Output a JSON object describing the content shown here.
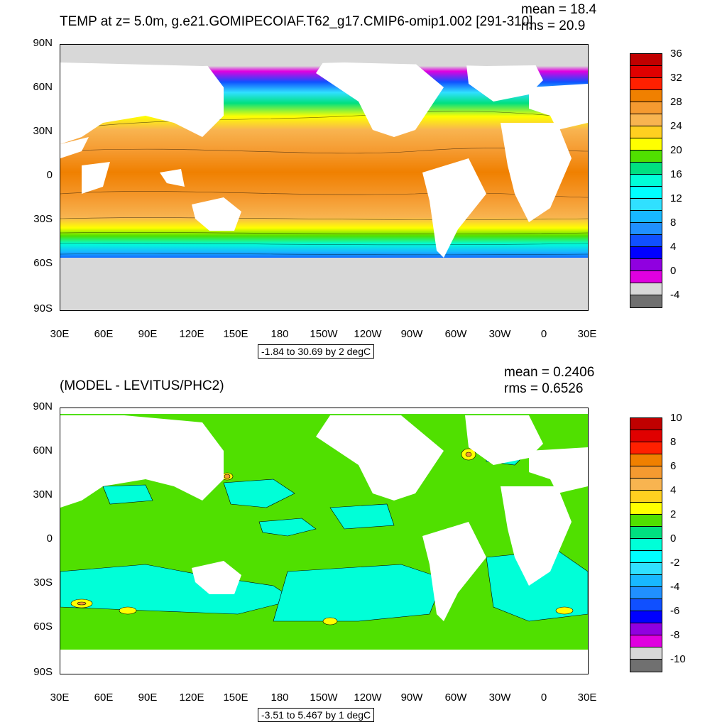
{
  "panels": [
    {
      "id": "top",
      "title": "TEMP at z=   5.0m, g.e21.GOMIPECOIAF.T62_g17.CMIP6-omip1.002 [291-310]",
      "mean": "mean = 18.4",
      "rms": "rms = 20.9",
      "info": "-1.84 to 30.69 by 2 degC",
      "colorbar_labels": [
        "36",
        "32",
        "28",
        "24",
        "20",
        "16",
        "12",
        "8",
        "4",
        "0",
        "-4"
      ],
      "colorbar_colors": [
        "#c00000",
        "#e00000",
        "#ff2000",
        "#f08000",
        "#f59a30",
        "#f8b450",
        "#ffd020",
        "#ffff00",
        "#50e000",
        "#00e080",
        "#00ffd8",
        "#00ffff",
        "#30e0ff",
        "#18b8ff",
        "#2090ff",
        "#1050ff",
        "#0000ff",
        "#9000e0",
        "#e000e0",
        "#d8d8d8",
        "#707070"
      ]
    },
    {
      "id": "bottom",
      "title": "(MODEL - LEVITUS/PHC2)",
      "mean": "mean = 0.2406",
      "rms": "rms = 0.6526",
      "info": "-3.51 to 5.467 by 1 degC",
      "colorbar_labels": [
        "10",
        "8",
        "6",
        "4",
        "2",
        "0",
        "-2",
        "-4",
        "-6",
        "-8",
        "-10"
      ],
      "colorbar_colors": [
        "#c00000",
        "#e00000",
        "#ff2000",
        "#f08000",
        "#f59a30",
        "#f8b450",
        "#ffd020",
        "#ffff00",
        "#50e000",
        "#00e080",
        "#00ffd8",
        "#00ffff",
        "#30e0ff",
        "#18b8ff",
        "#2090ff",
        "#1050ff",
        "#0000ff",
        "#9000e0",
        "#e000e0",
        "#d8d8d8",
        "#707070"
      ]
    }
  ],
  "lat_labels": [
    "90N",
    "60N",
    "30N",
    "0",
    "30S",
    "60S",
    "90S"
  ],
  "lon_labels": [
    "30E",
    "60E",
    "90E",
    "120E",
    "150E",
    "180",
    "150W",
    "120W",
    "90W",
    "60W",
    "30W",
    "0",
    "30E"
  ]
}
